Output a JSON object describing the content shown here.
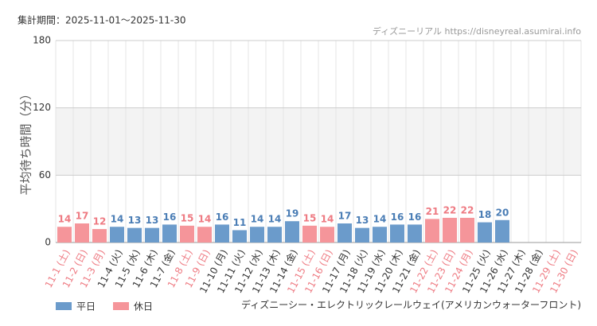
{
  "chart_data": {
    "type": "bar",
    "period": "集計期間：2025-11-01～2025-11-30",
    "source": "ディズニーリアル https://disneyreal.asumirai.info",
    "y_label": "平均待ち時間（分）",
    "footer": "ディズニーシー・エレクトリックレールウェイ(アメリカンウォーターフロント)",
    "categories": [
      "11-1 (土)",
      "11-2 (日)",
      "11-3 (月)",
      "11-4 (火)",
      "11-5 (水)",
      "11-6 (木)",
      "11-7 (金)",
      "11-8 (土)",
      "11-9 (日)",
      "11-10 (月)",
      "11-11 (火)",
      "11-12 (水)",
      "11-13 (木)",
      "11-14 (金)",
      "11-15 (土)",
      "11-16 (日)",
      "11-17 (月)",
      "11-18 (火)",
      "11-19 (水)",
      "11-20 (木)",
      "11-21 (金)",
      "11-22 (土)",
      "11-23 (日)",
      "11-24 (月)",
      "11-25 (火)",
      "11-26 (水)",
      "11-27 (木)",
      "11-28 (金)",
      "11-29 (土)",
      "11-30 (日)"
    ],
    "category_series": [
      1,
      1,
      1,
      0,
      0,
      0,
      0,
      1,
      1,
      0,
      0,
      0,
      0,
      0,
      1,
      1,
      0,
      0,
      0,
      0,
      0,
      1,
      1,
      1,
      0,
      0,
      0,
      0,
      1,
      1
    ],
    "series": [
      {
        "name": "平日",
        "color": "#6b9bcb",
        "label_color": "#4a7db5",
        "values": [
          null,
          null,
          null,
          14,
          13,
          13,
          16,
          null,
          null,
          16,
          11,
          14,
          14,
          19,
          null,
          null,
          17,
          13,
          14,
          16,
          16,
          null,
          null,
          null,
          18,
          20,
          null,
          null,
          null,
          null
        ]
      },
      {
        "name": "休日",
        "color": "#f5959a",
        "label_color": "#ee7a82",
        "values": [
          14,
          17,
          12,
          null,
          null,
          null,
          null,
          15,
          14,
          null,
          null,
          null,
          null,
          null,
          15,
          14,
          null,
          null,
          null,
          null,
          null,
          21,
          22,
          22,
          null,
          null,
          null,
          null,
          null,
          null
        ]
      }
    ],
    "ylim": [
      0,
      180
    ],
    "yticks": [
      0,
      60,
      120,
      180
    ],
    "grid": true
  }
}
